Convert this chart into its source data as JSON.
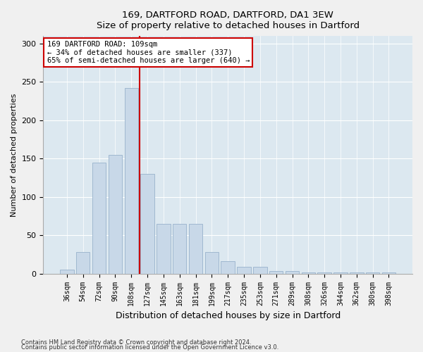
{
  "title1": "169, DARTFORD ROAD, DARTFORD, DA1 3EW",
  "title2": "Size of property relative to detached houses in Dartford",
  "xlabel": "Distribution of detached houses by size in Dartford",
  "ylabel": "Number of detached properties",
  "bar_labels": [
    "36sqm",
    "54sqm",
    "72sqm",
    "90sqm",
    "108sqm",
    "127sqm",
    "145sqm",
    "163sqm",
    "181sqm",
    "199sqm",
    "217sqm",
    "235sqm",
    "253sqm",
    "271sqm",
    "289sqm",
    "308sqm",
    "326sqm",
    "344sqm",
    "362sqm",
    "380sqm",
    "398sqm"
  ],
  "bar_values": [
    5,
    28,
    145,
    155,
    242,
    130,
    65,
    65,
    65,
    28,
    16,
    9,
    9,
    3,
    3,
    2,
    2,
    2,
    2,
    2,
    2
  ],
  "bar_color": "#c8d8e8",
  "bar_edge_color": "#a0b8d0",
  "vline_color": "#cc0000",
  "annotation_text": "169 DARTFORD ROAD: 109sqm\n← 34% of detached houses are smaller (337)\n65% of semi-detached houses are larger (640) →",
  "annotation_box_color": "#ffffff",
  "annotation_box_edge": "#cc0000",
  "ylim": [
    0,
    310
  ],
  "yticks": [
    0,
    50,
    100,
    150,
    200,
    250,
    300
  ],
  "background_color": "#dce8f0",
  "grid_color": "#ffffff",
  "footer1": "Contains HM Land Registry data © Crown copyright and database right 2024.",
  "footer2": "Contains public sector information licensed under the Open Government Licence v3.0."
}
